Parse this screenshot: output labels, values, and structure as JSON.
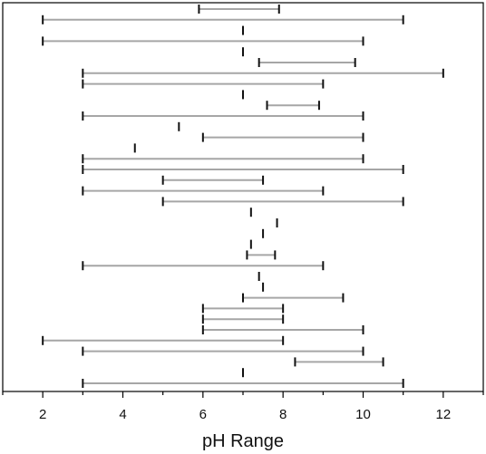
{
  "chart_data": {
    "type": "range-dot",
    "title": "",
    "xlabel": "pH Range",
    "ylabel": "",
    "xlim": [
      1,
      13
    ],
    "xticks": [
      2,
      4,
      6,
      8,
      10,
      12
    ],
    "grid": false,
    "ranges": [
      [
        5.9,
        7.9
      ],
      [
        2,
        11
      ],
      [
        7,
        7
      ],
      [
        2,
        10
      ],
      [
        7,
        7
      ],
      [
        7.4,
        9.8
      ],
      [
        3,
        12
      ],
      [
        3,
        9
      ],
      [
        7,
        7
      ],
      [
        7.6,
        8.9
      ],
      [
        3,
        10
      ],
      [
        5.4,
        5.4
      ],
      [
        6,
        10
      ],
      [
        4.3,
        4.3
      ],
      [
        3,
        10
      ],
      [
        3,
        11
      ],
      [
        5,
        7.5
      ],
      [
        3,
        9
      ],
      [
        5,
        11
      ],
      [
        7.2,
        7.2
      ],
      [
        7.85,
        7.85
      ],
      [
        7.5,
        7.5
      ],
      [
        7.2,
        7.2
      ],
      [
        7.1,
        7.8
      ],
      [
        3,
        9
      ],
      [
        7.4,
        7.4
      ],
      [
        7.5,
        7.5
      ],
      [
        7,
        9.5
      ],
      [
        6,
        8
      ],
      [
        6,
        8
      ],
      [
        6,
        10
      ],
      [
        2,
        8
      ],
      [
        3,
        10
      ],
      [
        8.3,
        10.5
      ],
      [
        7,
        7
      ],
      [
        3,
        11
      ]
    ]
  }
}
